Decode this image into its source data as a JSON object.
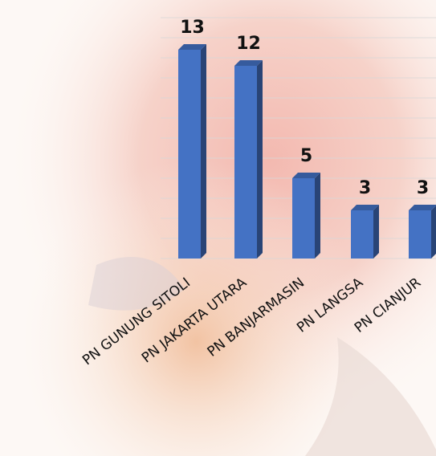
{
  "chart_data": {
    "type": "bar3d",
    "categories": [
      "PN GUNUNG SITOLI",
      "PN JAKARTA UTARA",
      "PN BANJARMASIN",
      "PN LANGSA",
      "PN CIANJUR"
    ],
    "values": [
      13,
      12,
      5,
      3,
      3
    ],
    "color": "#4472c4",
    "ylim": [
      0,
      15
    ],
    "yticks": [
      0,
      1.25,
      2.5,
      3.75,
      5,
      6.25,
      7.5,
      8.75,
      10,
      11.25,
      12.5,
      13.75,
      15
    ],
    "grid": true
  }
}
